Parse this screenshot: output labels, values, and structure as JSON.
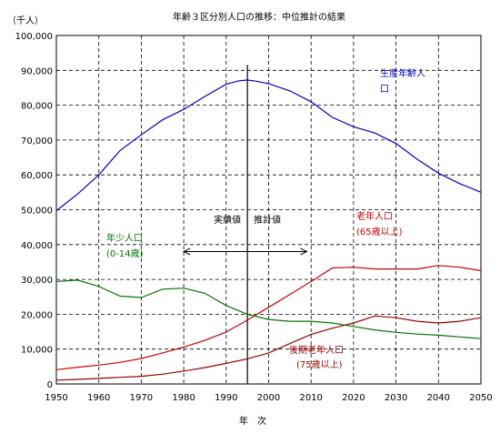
{
  "chart_data": {
    "type": "line",
    "title": "年齢３区分別人口の推移：中位推計の結果",
    "ylabel": "（千人）",
    "xlabel": "年　次",
    "xlim": [
      1950,
      2050
    ],
    "ylim": [
      0,
      100000
    ],
    "x_ticks": [
      "1950",
      "1960",
      "1970",
      "1980",
      "1990",
      "2000",
      "2010",
      "2020",
      "2030",
      "2040",
      "2050"
    ],
    "y_ticks": [
      "0",
      "10,000",
      "20,000",
      "30,000",
      "40,000",
      "50,000",
      "60,000",
      "70,000",
      "80,000",
      "90,000",
      "100,000"
    ],
    "grid": true,
    "divider_year": 1995,
    "annotations": {
      "actual": "実績値",
      "projected": "推計値",
      "arrow_from": 1980,
      "arrow_to": 2009,
      "arrow_value": 38000
    },
    "series": [
      {
        "name": "生産年齢人口",
        "color": "#0000cc",
        "label_lines": [
          "生産年齢人",
          "口"
        ],
        "x": [
          1950,
          1955,
          1960,
          1965,
          1970,
          1975,
          1980,
          1985,
          1990,
          1993,
          1995,
          1997,
          2000,
          2005,
          2010,
          2015,
          2020,
          2025,
          2030,
          2035,
          2040,
          2045,
          2050
        ],
        "values": [
          49700,
          54500,
          60000,
          67000,
          71500,
          75800,
          78800,
          82500,
          86000,
          87000,
          87200,
          86900,
          86200,
          84100,
          81000,
          76500,
          73800,
          72000,
          69000,
          64500,
          60500,
          57500,
          55000
        ]
      },
      {
        "name": "老年人口",
        "color": "#cc0000",
        "label_lines": [
          "老年人口",
          "(65歳以上)"
        ],
        "x": [
          1950,
          1955,
          1960,
          1965,
          1970,
          1975,
          1980,
          1985,
          1990,
          1995,
          2000,
          2005,
          2010,
          2015,
          2020,
          2025,
          2030,
          2035,
          2040,
          2045,
          2050
        ],
        "values": [
          4100,
          4800,
          5400,
          6200,
          7300,
          8900,
          10600,
          12500,
          14900,
          18300,
          22000,
          25700,
          29400,
          33300,
          33500,
          33000,
          33000,
          33000,
          34000,
          33500,
          32500
        ]
      },
      {
        "name": "年少人口",
        "color": "#007700",
        "label_lines": [
          "年少人口",
          "(0-14歳)"
        ],
        "x": [
          1950,
          1955,
          1960,
          1965,
          1970,
          1975,
          1980,
          1985,
          1990,
          1995,
          2000,
          2005,
          2010,
          2015,
          2020,
          2025,
          2030,
          2035,
          2040,
          2045,
          2050
        ],
        "values": [
          29400,
          29800,
          28000,
          25200,
          24800,
          27200,
          27500,
          26000,
          22500,
          20000,
          18500,
          18000,
          18000,
          17500,
          16500,
          15500,
          14800,
          14300,
          14000,
          13500,
          13000
        ]
      },
      {
        "name": "後期老年人口",
        "color": "#990000",
        "label_lines": [
          "後期老年人口",
          "(75歳以上)"
        ],
        "x": [
          1950,
          1955,
          1960,
          1965,
          1970,
          1975,
          1980,
          1985,
          1990,
          1995,
          2000,
          2005,
          2010,
          2015,
          2020,
          2025,
          2030,
          2035,
          2040,
          2045,
          2050
        ],
        "values": [
          1100,
          1300,
          1600,
          1900,
          2200,
          2800,
          3700,
          4700,
          5900,
          7200,
          8900,
          11600,
          14200,
          16000,
          17500,
          19500,
          19000,
          18000,
          17500,
          18000,
          19000
        ]
      }
    ]
  }
}
